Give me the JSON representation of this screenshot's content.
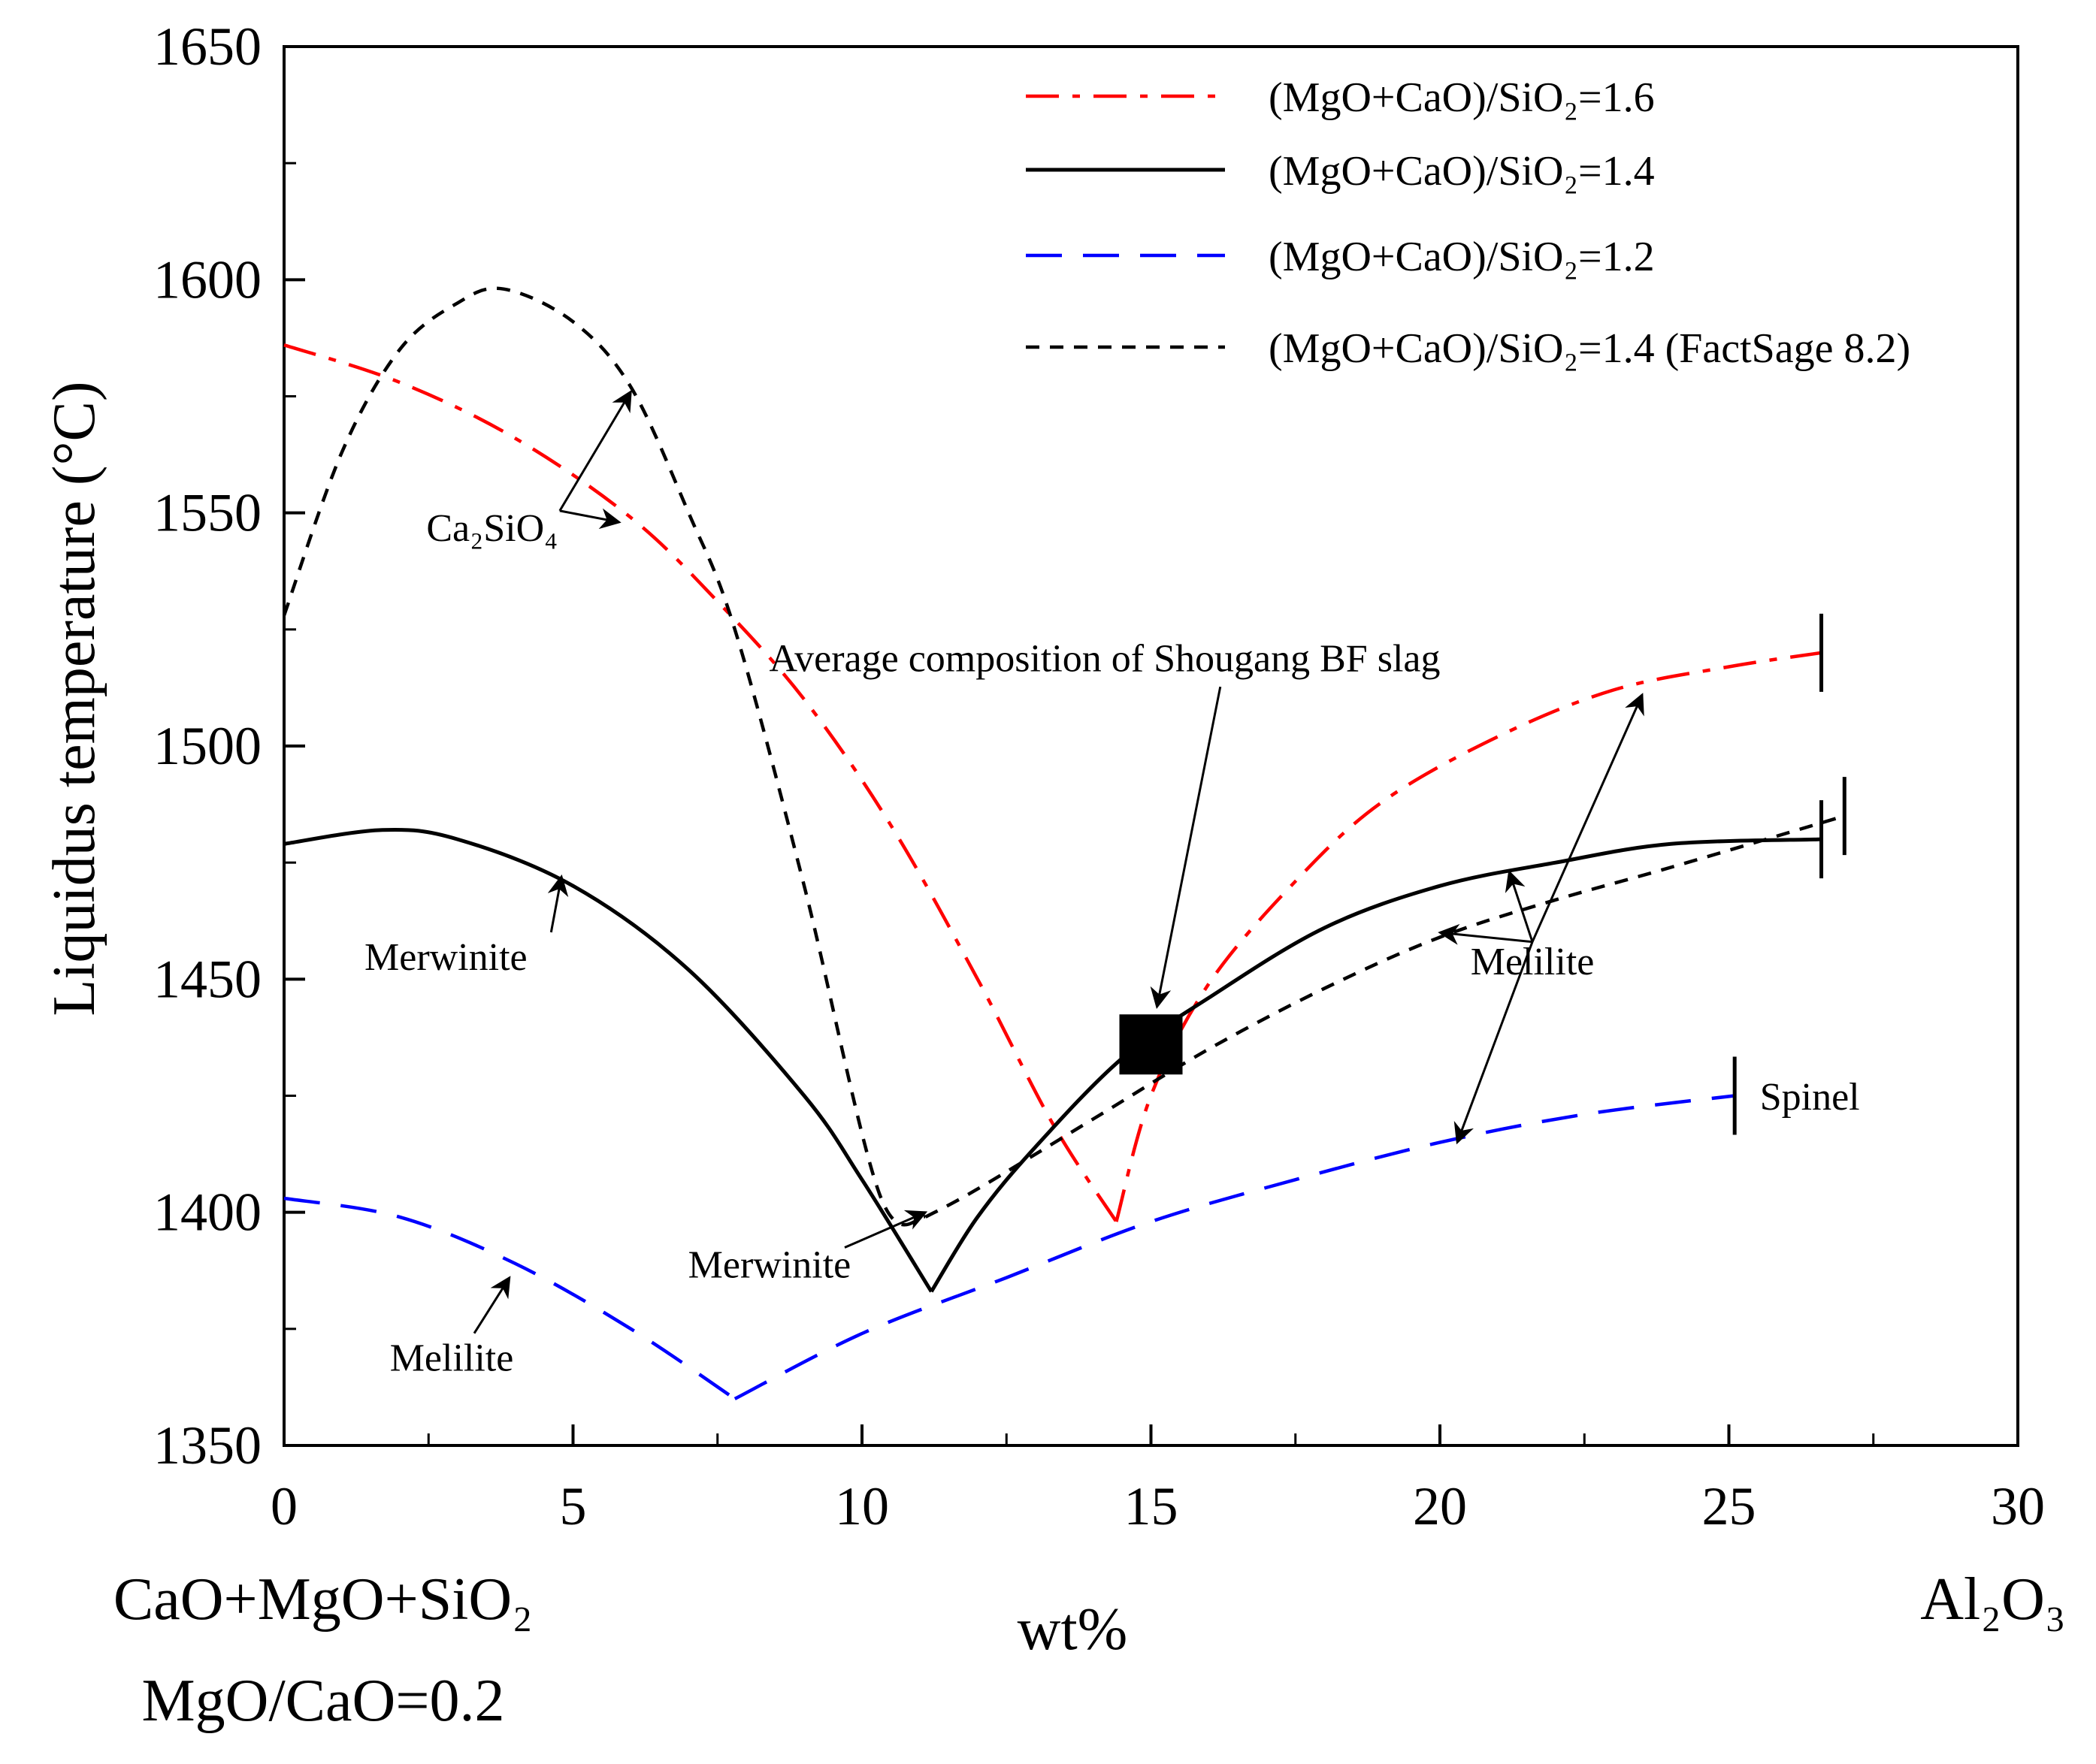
{
  "chart_data": {
    "type": "line",
    "ylabel": "Liquidus temperature (°C)",
    "xlabel": "wt%",
    "xlim": [
      0,
      30
    ],
    "ylim": [
      1350,
      1650
    ],
    "x_ticks": [
      0,
      5,
      10,
      15,
      20,
      25,
      30
    ],
    "y_ticks": [
      1350,
      1400,
      1450,
      1500,
      1550,
      1600,
      1650
    ],
    "x_minor_step": 2.5,
    "y_minor_step": 25,
    "grid": false,
    "legend_position": "top-right",
    "bottom_left_label": "CaO+MgO+SiO₂",
    "bottom_left_sublabel": "MgO/CaO=0.2",
    "bottom_right_label": "Al₂O₃",
    "series": [
      {
        "name": "(MgO+CaO)/SiO₂=1.6",
        "color": "#ff0000",
        "style": "dashdot",
        "x": [
          0,
          2,
          4,
          6,
          7.5,
          9,
          10.5,
          12,
          13.3,
          14.4,
          15,
          16,
          17.5,
          19,
          21,
          23,
          25,
          26.6
        ],
        "y": [
          1586,
          1578,
          1566,
          1549,
          1531,
          1510,
          1483,
          1450,
          1419,
          1398,
          1425,
          1449,
          1471,
          1488,
          1502,
          1512,
          1517,
          1520
        ]
      },
      {
        "name": "(MgO+CaO)/SiO₂=1.4",
        "color": "#000000",
        "style": "solid",
        "x": [
          0,
          1.7,
          3,
          5,
          7,
          9,
          10,
          11.2,
          12,
          13,
          14.5,
          16,
          18,
          20,
          22,
          24,
          26.6
        ],
        "y": [
          1479,
          1482,
          1480,
          1470,
          1452,
          1425,
          1407,
          1383,
          1399,
          1414,
          1433,
          1446,
          1461,
          1470,
          1475,
          1479,
          1480
        ]
      },
      {
        "name": "(MgO+CaO)/SiO₂=1.2",
        "color": "#0000ff",
        "style": "dashed",
        "x": [
          0,
          2,
          4,
          6,
          7.8,
          10,
          12.5,
          15,
          17.5,
          20,
          22.5,
          25.1
        ],
        "y": [
          1403,
          1399,
          1389,
          1375,
          1360,
          1374,
          1386,
          1398,
          1407,
          1415,
          1421,
          1425
        ]
      },
      {
        "name": "(MgO+CaO)/SiO₂=1.4 (FactSage 8.2)",
        "color": "#000000",
        "style": "dotted",
        "x": [
          0,
          1,
          2,
          3,
          3.8,
          5,
          6,
          7,
          7.8,
          9,
          10.3,
          11.1,
          12,
          14,
          16,
          18,
          20,
          22,
          24,
          27
        ],
        "y": [
          1528,
          1563,
          1585,
          1595,
          1598,
          1591,
          1577,
          1550,
          1525,
          1470,
          1404,
          1399,
          1405,
          1420,
          1435,
          1448,
          1459,
          1467,
          1474,
          1485
        ]
      }
    ],
    "end_markers": [
      {
        "x": 26.6,
        "y": 1520
      },
      {
        "x": 26.6,
        "y": 1480
      },
      {
        "x": 27.0,
        "y": 1485
      },
      {
        "x": 25.1,
        "y": 1425
      }
    ],
    "highlight_point": {
      "x": 15,
      "y": 1436,
      "label": "Average composition of Shougang BF slag"
    },
    "annotations": [
      {
        "label": "Ca₂SiO₄",
        "x": 3.6,
        "y": 1544,
        "targets": [
          {
            "x": 6.0,
            "y": 1576
          },
          {
            "x": 5.8,
            "y": 1548
          }
        ]
      },
      {
        "label": "Merwinite",
        "x": 2.8,
        "y": 1452,
        "targets": [
          {
            "x": 4.8,
            "y": 1472
          }
        ]
      },
      {
        "label": "Merwinite",
        "x": 8.4,
        "y": 1386,
        "targets": [
          {
            "x": 11.1,
            "y": 1400
          }
        ]
      },
      {
        "label": "Melilite",
        "x": 2.9,
        "y": 1366,
        "targets": [
          {
            "x": 3.9,
            "y": 1386
          }
        ]
      },
      {
        "label": "Melilite",
        "x": 21.6,
        "y": 1451,
        "targets": [
          {
            "x": 20.3,
            "y": 1415
          },
          {
            "x": 20.0,
            "y": 1460
          },
          {
            "x": 21.2,
            "y": 1473
          },
          {
            "x": 23.5,
            "y": 1511
          }
        ]
      },
      {
        "label": "Spinel",
        "x": 26.4,
        "y": 1422,
        "targets": []
      }
    ]
  }
}
